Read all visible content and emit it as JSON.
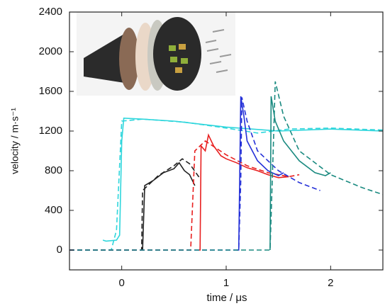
{
  "chart_data": {
    "type": "line",
    "xlabel": "time / μs",
    "ylabel": "velocity / m·s⁻¹",
    "xlim": [
      -0.5,
      2.5
    ],
    "xticks": [
      0,
      1,
      2
    ],
    "ylim": [
      -200,
      2400
    ],
    "yticks": [
      0,
      400,
      800,
      1200,
      1600,
      2000,
      2400
    ],
    "series": [
      {
        "color": "#2fd6dc",
        "style": "dashed",
        "x": [
          -0.5,
          -0.1,
          -0.05,
          0,
          0.2,
          0.6,
          1.0,
          1.3,
          1.6,
          2.0,
          2.5
        ],
        "values": [
          0,
          0,
          200,
          1300,
          1320,
          1290,
          1230,
          1180,
          1220,
          1230,
          1210
        ]
      },
      {
        "color": "#2fd6dc",
        "style": "solid",
        "x": [
          -0.18,
          -0.15,
          -0.05,
          -0.02,
          0,
          0.02,
          0.2,
          0.5,
          1.0,
          1.5,
          2.0,
          2.5
        ],
        "values": [
          100,
          90,
          100,
          150,
          1100,
          1330,
          1320,
          1300,
          1240,
          1200,
          1220,
          1200
        ]
      },
      {
        "color": "#222222",
        "style": "dashed",
        "x": [
          -0.5,
          0.19,
          0.2,
          0.35,
          0.5,
          0.58,
          0.65,
          0.75
        ],
        "values": [
          0,
          0,
          600,
          750,
          850,
          920,
          870,
          720
        ]
      },
      {
        "color": "#222222",
        "style": "solid",
        "x": [
          0.19,
          0.2,
          0.22,
          0.3,
          0.4,
          0.5,
          0.55,
          0.6,
          0.65,
          0.7
        ],
        "values": [
          0,
          0,
          650,
          700,
          780,
          820,
          880,
          800,
          760,
          650
        ]
      },
      {
        "color": "#e82020",
        "style": "dashed",
        "x": [
          -0.5,
          0.66,
          0.7,
          0.8,
          1.0,
          1.2,
          1.4,
          1.6,
          1.7
        ],
        "values": [
          0,
          0,
          1000,
          1100,
          960,
          850,
          780,
          740,
          760
        ]
      },
      {
        "color": "#e82020",
        "style": "solid",
        "x": [
          0.74,
          0.75,
          0.76,
          0.8,
          0.83,
          0.88,
          0.95,
          1.0,
          1.1,
          1.2,
          1.3,
          1.4,
          1.5,
          1.6
        ],
        "values": [
          0,
          0,
          1050,
          1000,
          1160,
          1050,
          950,
          920,
          880,
          830,
          800,
          760,
          730,
          740
        ]
      },
      {
        "color": "#2430d8",
        "style": "dashed",
        "x": [
          -0.5,
          1.12,
          1.14,
          1.15,
          1.2,
          1.3,
          1.5,
          1.7,
          1.9
        ],
        "values": [
          0,
          0,
          700,
          1540,
          1300,
          1000,
          800,
          680,
          600
        ]
      },
      {
        "color": "#2430d8",
        "style": "solid",
        "x": [
          1.1,
          1.12,
          1.14,
          1.17,
          1.2,
          1.3,
          1.4,
          1.5,
          1.55
        ],
        "values": [
          0,
          0,
          1550,
          1350,
          1100,
          900,
          800,
          750,
          780
        ]
      },
      {
        "color": "#1a8a80",
        "style": "dashed",
        "x": [
          -0.5,
          1.42,
          1.45,
          1.47,
          1.55,
          1.7,
          2.0,
          2.3,
          2.5
        ],
        "values": [
          0,
          0,
          1000,
          1700,
          1350,
          1000,
          760,
          630,
          560
        ]
      },
      {
        "color": "#1a8a80",
        "style": "solid",
        "x": [
          1.42,
          1.43,
          1.47,
          1.55,
          1.7,
          1.85,
          1.95,
          2.0
        ],
        "values": [
          0,
          1550,
          1300,
          1100,
          900,
          780,
          750,
          780
        ]
      }
    ]
  }
}
